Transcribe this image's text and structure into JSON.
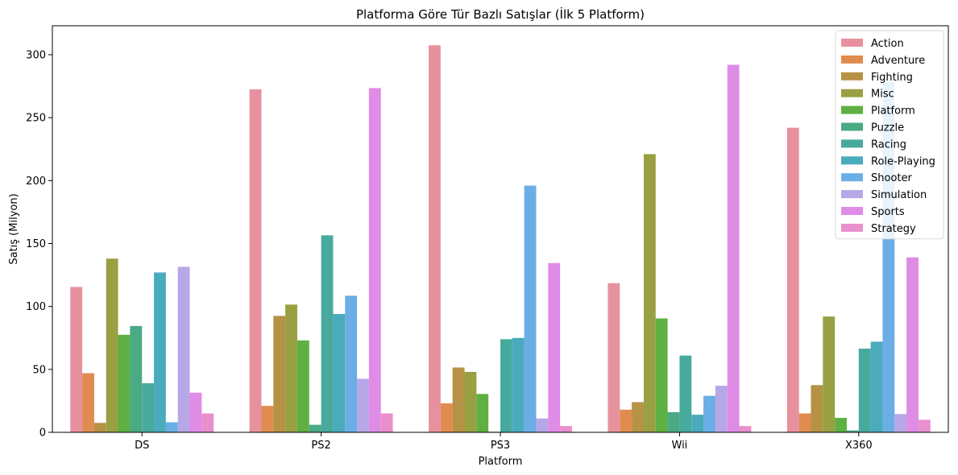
{
  "chart_data": {
    "type": "bar",
    "title": "Platforma Göre Tür Bazlı Satışlar (İlk 5 Platform)",
    "xlabel": "Platform",
    "ylabel": "Satış (Milyon)",
    "ylim": [
      0,
      323
    ],
    "yticks": [
      0,
      50,
      100,
      150,
      200,
      250,
      300
    ],
    "categories": [
      "DS",
      "PS2",
      "PS3",
      "Wii",
      "X360"
    ],
    "legend_position": "top-right",
    "series": [
      {
        "name": "Action",
        "color": "#e8919e",
        "values": [
          115.5,
          272.5,
          307.5,
          118.5,
          242.0
        ]
      },
      {
        "name": "Adventure",
        "color": "#e08b4f",
        "values": [
          47.0,
          21.0,
          23.0,
          18.0,
          15.0
        ]
      },
      {
        "name": "Fighting",
        "color": "#b59245",
        "values": [
          7.5,
          92.5,
          51.5,
          24.0,
          37.5
        ]
      },
      {
        "name": "Misc",
        "color": "#98a042",
        "values": [
          138.0,
          101.5,
          48.0,
          221.0,
          92.0
        ]
      },
      {
        "name": "Platform",
        "color": "#5eb042",
        "values": [
          77.5,
          73.0,
          30.5,
          90.5,
          11.5
        ]
      },
      {
        "name": "Puzzle",
        "color": "#4aaa84",
        "values": [
          84.5,
          6.0,
          0.5,
          16.0,
          1.5
        ]
      },
      {
        "name": "Racing",
        "color": "#47aa9d",
        "values": [
          39.0,
          156.5,
          74.0,
          61.0,
          66.5
        ]
      },
      {
        "name": "Role-Playing",
        "color": "#4aabbd",
        "values": [
          127.0,
          94.0,
          75.0,
          14.0,
          72.0
        ]
      },
      {
        "name": "Shooter",
        "color": "#6aaee5",
        "values": [
          8.0,
          108.5,
          196.0,
          29.0,
          278.5
        ]
      },
      {
        "name": "Simulation",
        "color": "#b7a7e6",
        "values": [
          131.5,
          42.5,
          11.0,
          37.0,
          14.5
        ]
      },
      {
        "name": "Sports",
        "color": "#df8ce6",
        "values": [
          31.5,
          273.5,
          134.5,
          292.0,
          139.0
        ]
      },
      {
        "name": "Strategy",
        "color": "#ea8fce",
        "values": [
          15.0,
          15.0,
          5.0,
          5.0,
          10.0
        ]
      }
    ]
  }
}
